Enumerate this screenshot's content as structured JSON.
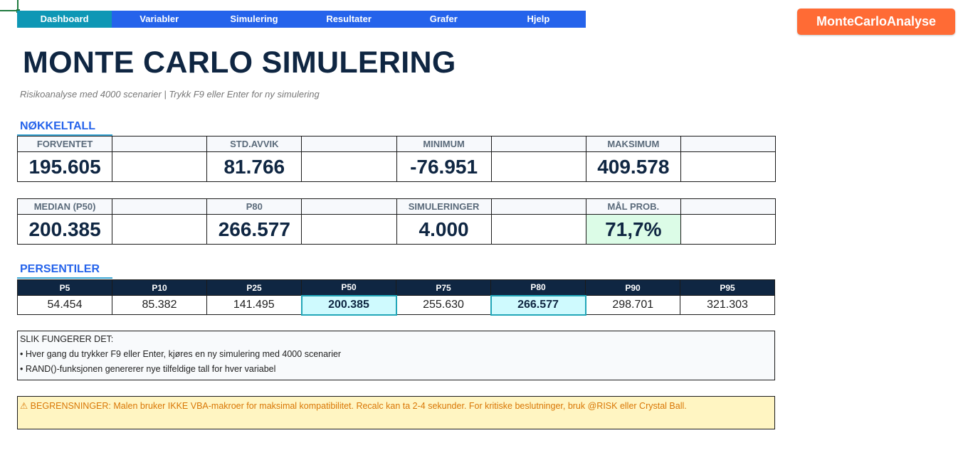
{
  "nav": {
    "tabs": [
      "Dashboard",
      "Variabler",
      "Simulering",
      "Resultater",
      "Grafer",
      "Hjelp"
    ],
    "active": "Dashboard"
  },
  "badge": "MonteCarloAnalyse",
  "title": "MONTE CARLO SIMULERING",
  "subtitle": "Risikoanalyse med 4000 scenarier  |  Trykk F9 eller Enter for ny simulering",
  "sections": {
    "kpi": "NØKKELTALL",
    "percentiles": "PERSENTILER"
  },
  "kpi_row1": [
    {
      "label": "FORVENTET",
      "value": "195.605"
    },
    {
      "label": "STD.AVVIK",
      "value": "81.766"
    },
    {
      "label": "MINIMUM",
      "value": "-76.951"
    },
    {
      "label": "MAKSIMUM",
      "value": "409.578"
    }
  ],
  "kpi_row2": [
    {
      "label": "MEDIAN (P50)",
      "value": "200.385"
    },
    {
      "label": "P80",
      "value": "266.577"
    },
    {
      "label": "SIMULERINGER",
      "value": "4.000"
    },
    {
      "label": "MÅL PROB.",
      "value": "71,7%"
    }
  ],
  "percentiles": {
    "headers": [
      "P5",
      "P10",
      "P25",
      "P50",
      "P75",
      "P80",
      "P90",
      "P95"
    ],
    "values": [
      "54.454",
      "85.382",
      "141.495",
      "200.385",
      "255.630",
      "266.577",
      "298.701",
      "321.303"
    ],
    "highlighted": [
      "P50",
      "P80"
    ]
  },
  "info": {
    "title": "SLIK FUNGERER DET:",
    "lines": [
      "• Hver gang du trykker F9 eller Enter, kjøres en ny simulering med 4000 scenarier",
      "• RAND()-funksjonen genererer nye tilfeldige tall for hver variabel"
    ]
  },
  "warning": "⚠ BEGRENSNINGER: Malen bruker IKKE VBA-makroer for maksimal kompatibilitet. Recalc kan ta 2-4 sekunder. For kritiske beslutninger, bruk @RISK eller Crystal Ball.",
  "colors": {
    "nav": "#2563eb",
    "nav_active": "#0e97b5",
    "badge": "#ff6b35",
    "title": "#0f2642",
    "goal_prob": "#14a06a",
    "highlight": "#cffafe",
    "warning_bg": "#fff5c2",
    "warning_text": "#d97706"
  }
}
